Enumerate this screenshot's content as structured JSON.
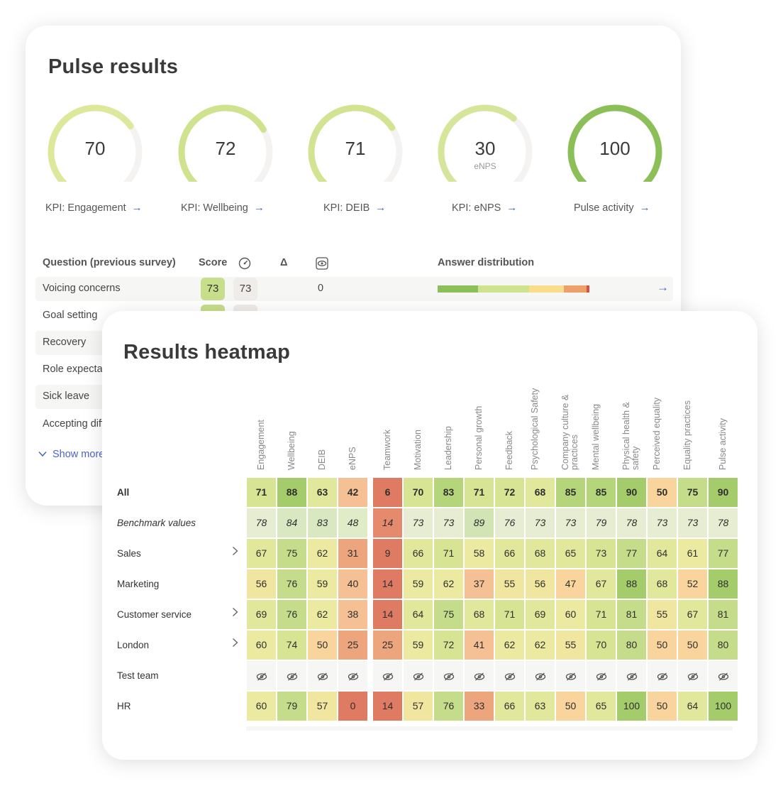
{
  "pulse": {
    "title": "Pulse results",
    "gauges": [
      {
        "value": "70",
        "sub": "",
        "fraction": 0.7,
        "color": "#dde89a",
        "label": "KPI: Engagement"
      },
      {
        "value": "72",
        "sub": "",
        "fraction": 0.72,
        "color": "#cfe28e",
        "label": "KPI: Wellbeing"
      },
      {
        "value": "71",
        "sub": "",
        "fraction": 0.71,
        "color": "#d2e391",
        "label": "KPI: DEIB"
      },
      {
        "value": "30",
        "sub": "eNPS",
        "fraction": 0.65,
        "color": "#d5e59a",
        "label": "KPI: eNPS"
      },
      {
        "value": "100",
        "sub": "",
        "fraction": 1.0,
        "color": "#8cbf58",
        "label": "Pulse activity"
      }
    ],
    "table_headers": {
      "question": "Question (previous survey)",
      "score": "Score",
      "previous_icon": "gauge-icon",
      "delta": "Δ",
      "visibility_icon": "eye-box-icon",
      "distribution": "Answer distribution"
    },
    "questions": [
      {
        "label": "Voicing concerns",
        "score": "73",
        "previous": "73",
        "delta": "0",
        "distribution": [
          0.27,
          0.34,
          0.23,
          0.15,
          0.02
        ]
      },
      {
        "label": "Goal setting"
      },
      {
        "label": "Recovery"
      },
      {
        "label": "Role expectations"
      },
      {
        "label": "Sick leave"
      },
      {
        "label": "Accepting differences"
      }
    ],
    "distribution_colors": [
      "#8cbf58",
      "#cfe28e",
      "#f7dd8c",
      "#eea06a",
      "#d2543f"
    ],
    "show_more": "Show more"
  },
  "heatmap": {
    "title": "Results heatmap",
    "columns": [
      "Engagement",
      "Wellbeing",
      "DEIB",
      "eNPS",
      "Teamwork",
      "Motivation",
      "Leadership",
      "Personal growth",
      "Feedback",
      "Psychological Safety",
      "Company culture & practices",
      "Mental wellbeing",
      "Physical health & safety",
      "Perceived equality",
      "Equality practices",
      "Pulse activity"
    ],
    "rows": [
      {
        "label": "All",
        "style": "bold",
        "expand": false,
        "values": [
          "71",
          "88",
          "63",
          "42",
          "6",
          "70",
          "83",
          "71",
          "72",
          "68",
          "85",
          "85",
          "90",
          "50",
          "75",
          "90"
        ]
      },
      {
        "label": "Benchmark values",
        "style": "italic",
        "expand": false,
        "values": [
          "78",
          "84",
          "83",
          "48",
          "14",
          "73",
          "73",
          "89",
          "76",
          "73",
          "73",
          "79",
          "78",
          "73",
          "73",
          "78"
        ]
      },
      {
        "label": "Sales",
        "style": "normal",
        "expand": true,
        "values": [
          "67",
          "75",
          "62",
          "31",
          "9",
          "66",
          "71",
          "58",
          "66",
          "68",
          "65",
          "73",
          "77",
          "64",
          "61",
          "77"
        ]
      },
      {
        "label": "Marketing",
        "style": "normal",
        "expand": false,
        "values": [
          "56",
          "76",
          "59",
          "40",
          "14",
          "59",
          "62",
          "37",
          "55",
          "56",
          "47",
          "67",
          "88",
          "68",
          "52",
          "88"
        ]
      },
      {
        "label": "Customer service",
        "style": "normal",
        "expand": true,
        "values": [
          "69",
          "76",
          "62",
          "38",
          "14",
          "64",
          "75",
          "68",
          "71",
          "69",
          "60",
          "71",
          "81",
          "55",
          "67",
          "81"
        ]
      },
      {
        "label": "London",
        "style": "normal",
        "expand": true,
        "values": [
          "60",
          "74",
          "50",
          "25",
          "25",
          "59",
          "72",
          "41",
          "62",
          "62",
          "55",
          "70",
          "80",
          "50",
          "50",
          "80"
        ]
      },
      {
        "label": "Test team",
        "style": "hidden",
        "expand": false,
        "values": [
          "",
          "",
          "",
          "",
          "",
          "",
          "",
          "",
          "",
          "",
          "",
          "",
          "",
          "",
          "",
          ""
        ]
      },
      {
        "label": "HR",
        "style": "normal",
        "expand": false,
        "values": [
          "60",
          "79",
          "57",
          "0",
          "14",
          "57",
          "76",
          "33",
          "66",
          "63",
          "50",
          "65",
          "100",
          "50",
          "64",
          "100"
        ]
      }
    ],
    "hidden_icon": "eye-slash-icon",
    "expand_icon": "chevron-right-icon"
  }
}
